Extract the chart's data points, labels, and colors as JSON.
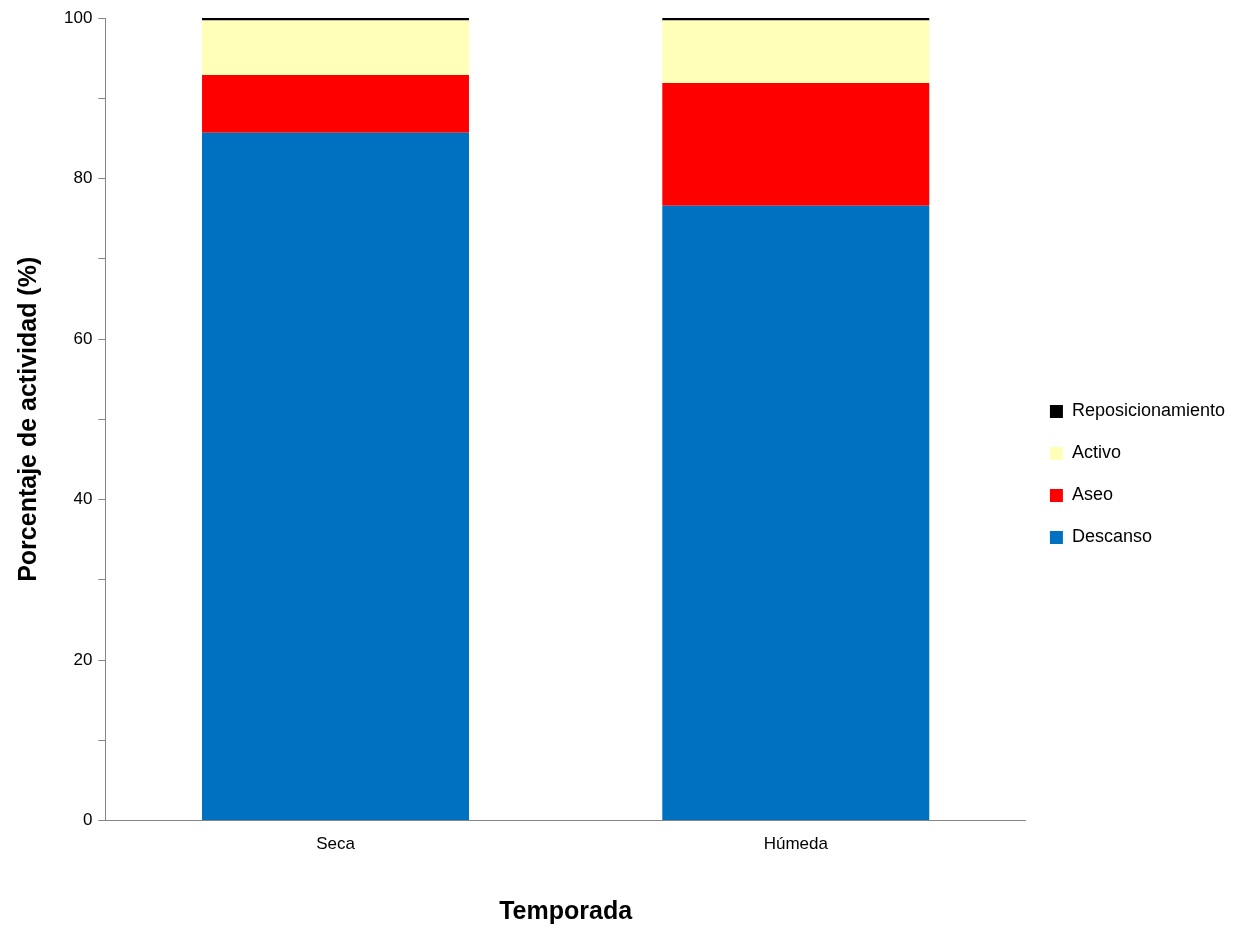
{
  "chart_data": {
    "type": "bar",
    "stacked": true,
    "xlabel": "Temporada",
    "ylabel": "Porcentaje de actividad (%)",
    "categories": [
      "Seca",
      "Húmeda"
    ],
    "series": [
      {
        "name": "Descanso",
        "color": "#0070c0",
        "values": [
          85.7,
          76.6
        ]
      },
      {
        "name": "Aseo",
        "color": "#ff0000",
        "values": [
          7.2,
          15.3
        ]
      },
      {
        "name": "Activo",
        "color": "#ffffb9",
        "values": [
          6.8,
          7.8
        ]
      },
      {
        "name": "Reposicionamiento",
        "color": "#000000",
        "values": [
          0.3,
          0.3
        ]
      }
    ],
    "ylim": [
      0,
      100
    ],
    "yticks": [
      0,
      {
        "value": 10,
        "label": null
      },
      20,
      {
        "value": 30,
        "label": null
      },
      40,
      {
        "value": 50,
        "label": null
      },
      60,
      {
        "value": 70,
        "label": null
      },
      80,
      {
        "value": 90,
        "label": null
      },
      100
    ],
    "legend": "right"
  }
}
